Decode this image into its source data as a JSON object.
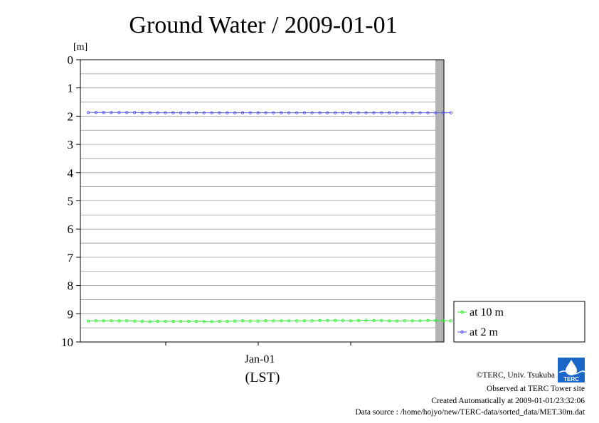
{
  "chart_data": {
    "type": "line",
    "title": "Ground Water / 2009-01-01",
    "ylabel": "[m]",
    "ylim": [
      0,
      10
    ],
    "y_inverted": true,
    "y_ticks": [
      "0",
      "1",
      "2",
      "3",
      "4",
      "5",
      "6",
      "7",
      "8",
      "9",
      "10"
    ],
    "x_tick_labels": [
      "Jan-01"
    ],
    "x_unit_label": "(LST)",
    "grid": true,
    "legend_placement": "bottom-right outside",
    "series": [
      {
        "name": "at 10 m",
        "color": "#33ee33",
        "values": [
          9.26,
          9.25,
          9.25,
          9.25,
          9.25,
          9.25,
          9.26,
          9.27,
          9.28,
          9.27,
          9.27,
          9.27,
          9.27,
          9.27,
          9.27,
          9.28,
          9.28,
          9.27,
          9.27,
          9.26,
          9.25,
          9.26,
          9.26,
          9.25,
          9.25,
          9.25,
          9.25,
          9.25,
          9.25,
          9.25,
          9.24,
          9.24,
          9.24,
          9.24,
          9.25,
          9.24,
          9.23,
          9.24,
          9.24,
          9.25,
          9.26,
          9.25,
          9.25,
          9.25,
          9.24,
          9.24,
          9.25,
          9.25
        ]
      },
      {
        "name": "at 2 m",
        "color": "#5555ee",
        "values": [
          1.87,
          1.87,
          1.87,
          1.87,
          1.87,
          1.87,
          1.87,
          1.88,
          1.88,
          1.88,
          1.88,
          1.88,
          1.88,
          1.88,
          1.88,
          1.88,
          1.88,
          1.88,
          1.88,
          1.88,
          1.88,
          1.88,
          1.88,
          1.88,
          1.88,
          1.88,
          1.88,
          1.88,
          1.88,
          1.88,
          1.88,
          1.88,
          1.88,
          1.88,
          1.88,
          1.88,
          1.88,
          1.88,
          1.88,
          1.88,
          1.88,
          1.88,
          1.88,
          1.88,
          1.88,
          1.88,
          1.88,
          1.88
        ]
      }
    ]
  },
  "credits": {
    "copyright": "©TERC, Univ. Tsukuba",
    "observed": "Observed at TERC Tower site",
    "created": "Created Automatically at 2009-01-01/23:32:06",
    "source": "Data source : /home/hojyo/new/TERC-data/sorted_data/MET.30m.dat"
  },
  "logo": {
    "text": "TERC"
  }
}
